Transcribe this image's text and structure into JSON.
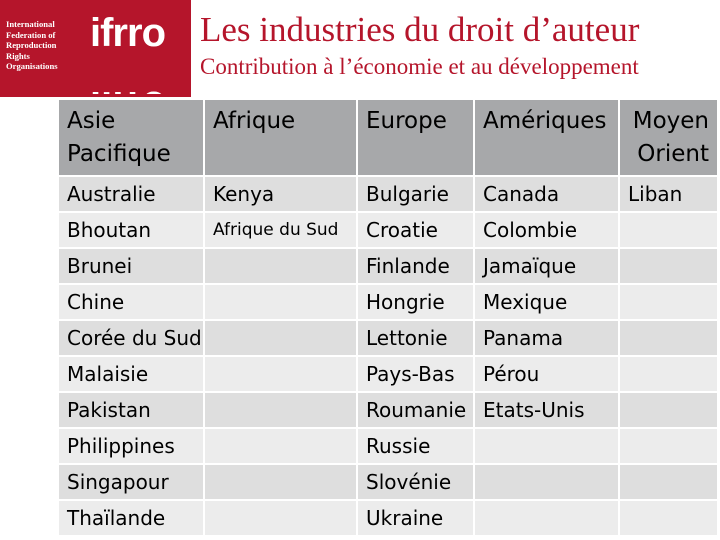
{
  "logo": {
    "lines": [
      "International",
      "Federation of",
      "Reproduction",
      "Rights",
      "Organisations"
    ],
    "mark": "ifrro"
  },
  "header": {
    "title": "Les industries du droit d’auteur",
    "subtitle": "Contribution à l’économie et au développement"
  },
  "table": {
    "headers": [
      [
        "Asie",
        "Pacifique"
      ],
      [
        "Afrique",
        ""
      ],
      [
        "Europe",
        ""
      ],
      [
        "Amériques",
        ""
      ],
      [
        "Moyen",
        "Orient"
      ]
    ],
    "rows": [
      [
        "Australie",
        "Kenya",
        "Bulgarie",
        "Canada",
        "Liban"
      ],
      [
        "Bhoutan",
        "Afrique du Sud",
        "Croatie",
        "Colombie",
        ""
      ],
      [
        "Brunei",
        "",
        "Finlande",
        "Jamaïque",
        ""
      ],
      [
        "Chine",
        "",
        "Hongrie",
        "Mexique",
        ""
      ],
      [
        "Corée du Sud",
        "",
        "Lettonie",
        "Panama",
        ""
      ],
      [
        "Malaisie",
        "",
        "Pays-Bas",
        "Pérou",
        ""
      ],
      [
        "Pakistan",
        "",
        "Roumanie",
        "Etats-Unis",
        ""
      ],
      [
        "Philippines",
        "",
        "Russie",
        "",
        ""
      ],
      [
        "Singapour",
        "",
        "Slovénie",
        "",
        ""
      ],
      [
        "Thaïlande",
        "",
        "Ukraine",
        "",
        ""
      ]
    ]
  },
  "colors": {
    "brand": "#b5152b",
    "header_bg": "#a7a8aa",
    "row_dark": "#dedede",
    "row_light": "#ececec"
  }
}
